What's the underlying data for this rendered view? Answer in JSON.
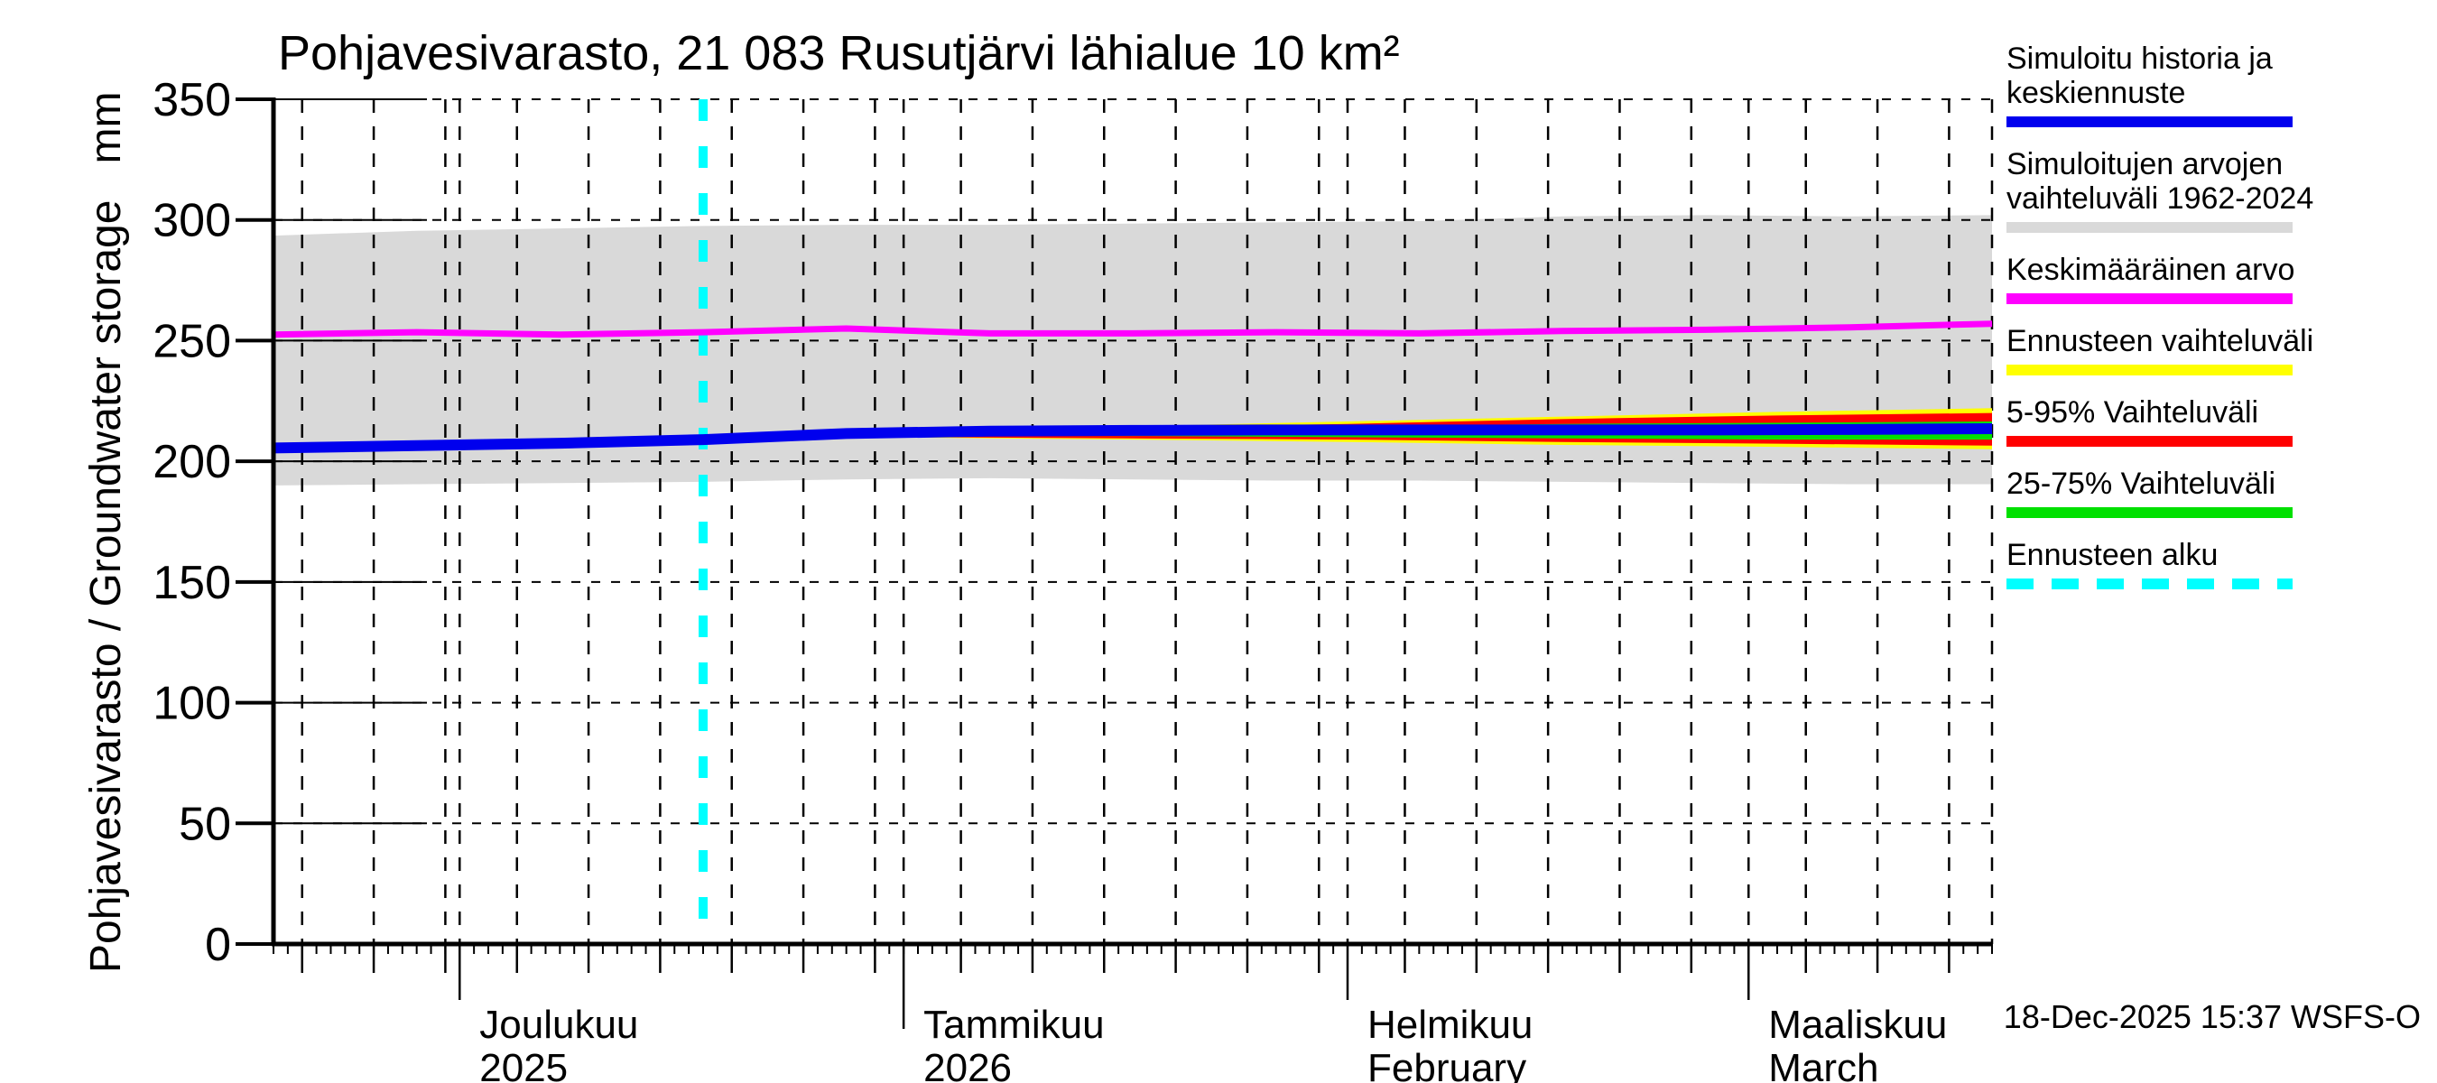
{
  "title": "Pohjavesivarasto, 21 083 Rusutjärvi lähialue 10 km²",
  "footer": {
    "timestamp": "18-Dec-2025 15:37 WSFS-O"
  },
  "legend": {
    "items": [
      {
        "id": "sim-history",
        "line1": "Simuloitu historia ja",
        "line2": "keskiennuste",
        "color": "#0000ee",
        "dashed": false
      },
      {
        "id": "sim-range",
        "line1": "Simuloitujen arvojen",
        "line2": "vaihteluväli 1962-2024",
        "color": "#d9d9d9",
        "dashed": false
      },
      {
        "id": "mean-value",
        "line1": "Keskimääräinen arvo",
        "line2": "",
        "color": "#ff00ff",
        "dashed": false
      },
      {
        "id": "forecast-range",
        "line1": "Ennusteen vaihteluväli",
        "line2": "",
        "color": "#ffff00",
        "dashed": false
      },
      {
        "id": "p5-95",
        "line1": "5-95% Vaihteluväli",
        "line2": "",
        "color": "#ff0000",
        "dashed": false
      },
      {
        "id": "p25-75",
        "line1": "25-75% Vaihteluväli",
        "line2": "",
        "color": "#00e000",
        "dashed": false
      },
      {
        "id": "forecast-start",
        "line1": "Ennusteen alku",
        "line2": "",
        "color": "#00ffff",
        "dashed": true
      }
    ]
  },
  "chart_data": {
    "type": "line",
    "title": "Pohjavesivarasto, 21 083 Rusutjärvi lähialue 10 km²",
    "ylabel": "Pohjavesivarasto / Groundwater storage   mm",
    "xlabel": "",
    "ylim": [
      0,
      350
    ],
    "yticks": [
      0,
      50,
      100,
      150,
      200,
      250,
      300,
      350
    ],
    "grid": true,
    "legend_position": "right-outside",
    "x_axis": {
      "total_days": 120,
      "start_date": "18-Nov-2025",
      "end_date": "18-Mar-2026",
      "months": [
        {
          "label": "Joulukuu",
          "sublabel": "2025",
          "start_day": 13,
          "year_start": false
        },
        {
          "label": "Tammikuu",
          "sublabel": "2026",
          "start_day": 44,
          "year_start": true
        },
        {
          "label": "Helmikuu",
          "sublabel": "February",
          "start_day": 75,
          "year_start": false
        },
        {
          "label": "Maaliskuu",
          "sublabel": "March",
          "start_day": 103,
          "year_start": false
        }
      ],
      "grid_days": [
        2,
        7,
        12,
        13,
        17,
        22,
        27,
        32,
        37,
        42,
        44,
        48,
        53,
        58,
        63,
        68,
        73,
        75,
        79,
        84,
        89,
        94,
        99,
        103,
        107,
        112,
        117,
        120
      ]
    },
    "forecast_start_day": 30,
    "series": {
      "days": [
        0,
        10,
        20,
        30,
        40,
        50,
        60,
        70,
        80,
        90,
        100,
        110,
        120
      ],
      "sim_range_top": [
        293.5,
        295.5,
        296.5,
        297.5,
        298,
        298,
        298.5,
        299,
        299.5,
        301.5,
        302,
        301.5,
        302
      ],
      "sim_range_bottom": [
        190,
        190.5,
        191,
        191.5,
        192.5,
        193,
        192.5,
        192,
        192,
        191.5,
        191,
        190.5,
        190.5
      ],
      "mean_1962_2024": [
        252.5,
        253.5,
        252.5,
        253.5,
        255,
        253,
        253,
        253.5,
        253,
        254,
        254.5,
        255.5,
        257
      ],
      "median_forecast": [
        205.5,
        206.5,
        207.5,
        209,
        211.5,
        212.5,
        212.8,
        213,
        213,
        213,
        213,
        213.2,
        213.5
      ]
    },
    "forecast_bands": {
      "days": [
        30,
        45,
        60,
        75,
        90,
        105,
        120
      ],
      "range_top": [
        209,
        212.5,
        214.5,
        216.5,
        218.5,
        220.5,
        222
      ],
      "p95": [
        209,
        212,
        214,
        215.5,
        217.5,
        219,
        220
      ],
      "p75": [
        209,
        211.5,
        213,
        214.5,
        215.5,
        216,
        216.5
      ],
      "p25": [
        209,
        210.5,
        210.5,
        210,
        209.5,
        209,
        209
      ],
      "p05": [
        209,
        210,
        209.5,
        209,
        208,
        207.3,
        206.5
      ],
      "range_bottom": [
        209,
        209.8,
        209,
        208,
        206.8,
        206,
        205
      ]
    },
    "colors": {
      "median": "#0000ee",
      "sim_range": "#d9d9d9",
      "mean": "#ff00ff",
      "forecast_range": "#ffff00",
      "p5_95": "#ff0000",
      "p25_75": "#00e000",
      "forecast_start": "#00ffff",
      "axis": "#000000",
      "grid": "#000000"
    }
  }
}
